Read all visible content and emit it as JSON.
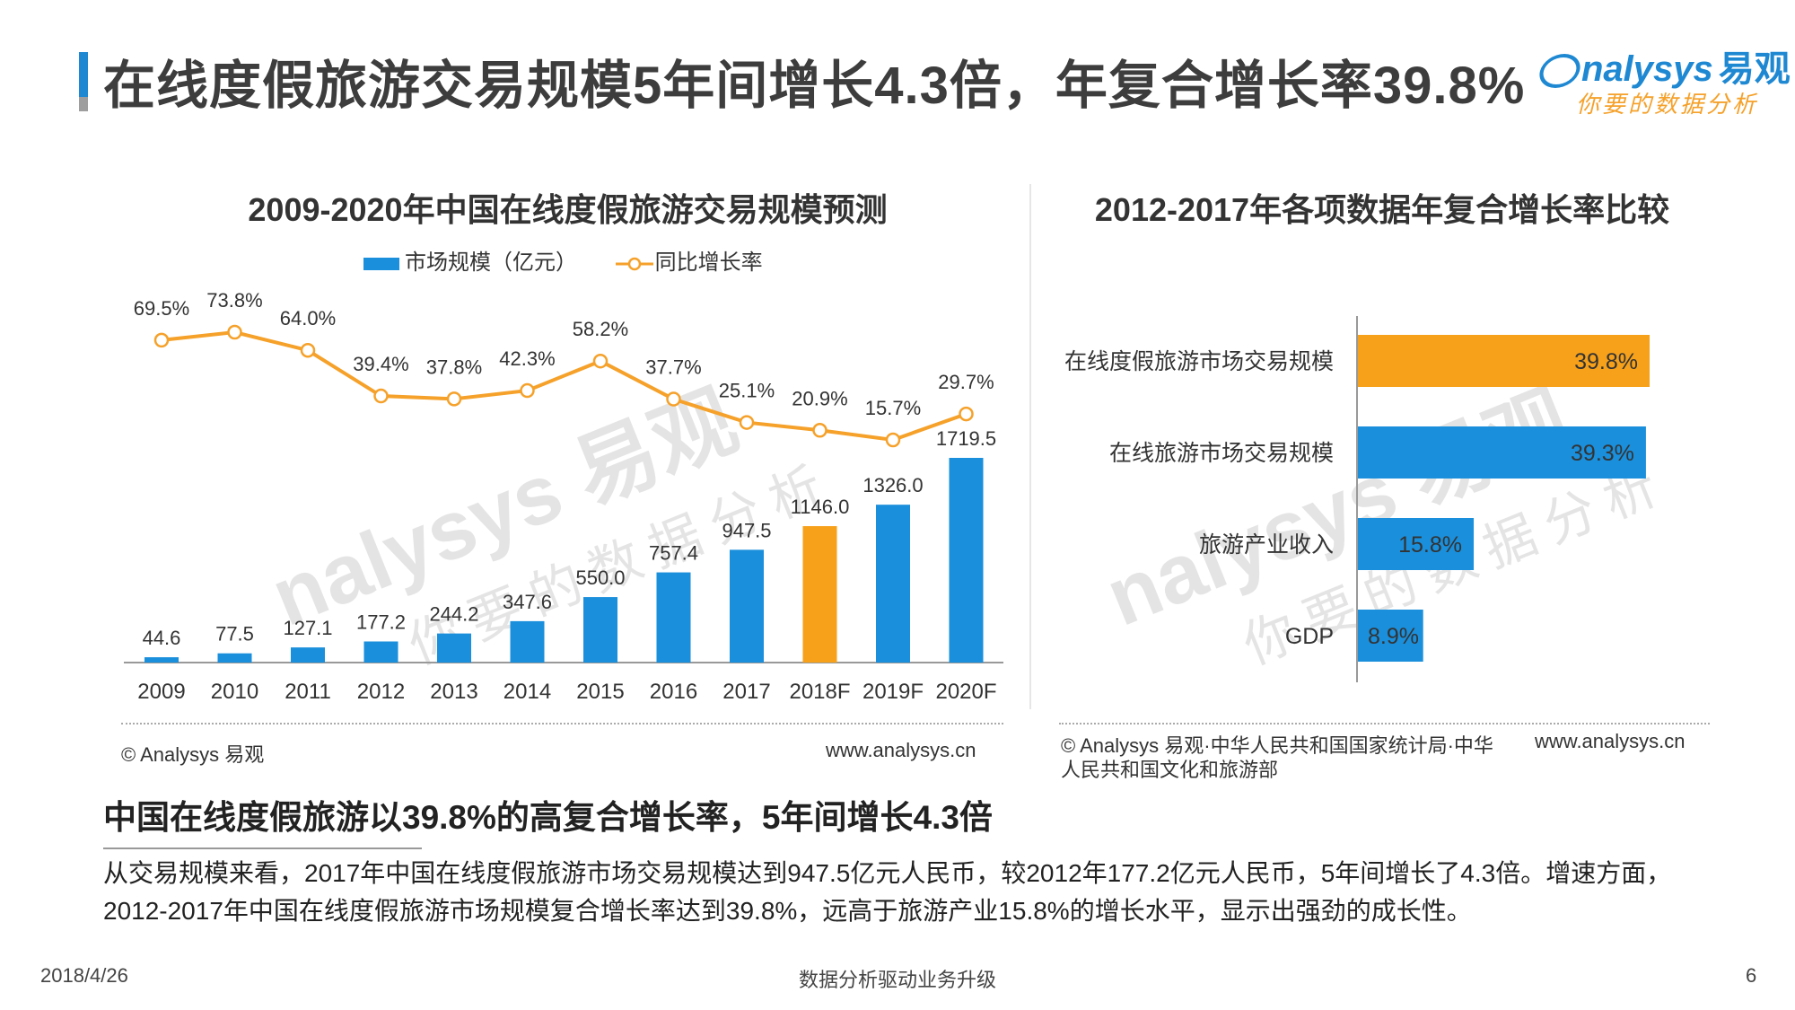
{
  "header": {
    "title": "在线度假旅游交易规模5年间增长4.3倍，年复合增长率39.8%",
    "logo_text": "nalysys",
    "logo_cn": "易观",
    "logo_sub": "你要的数据分析"
  },
  "watermark": {
    "brand": "nalysys 易观",
    "sub": "你要的数据分析"
  },
  "left_chart": {
    "source_left": "© Analysys 易观",
    "source_right": "www.analysys.cn"
  },
  "right_chart": {
    "source_text": "© Analysys 易观·中华人民共和国国家统计局·中华人民共和国文化和旅游部",
    "source_right": "www.analysys.cn",
    "source_line1": "© Analysys 易观·中华人民共和国国家统计局·中华",
    "source_line2": "人民共和国文化和旅游部"
  },
  "chart_data": [
    {
      "type": "bar",
      "title": "2009-2020年中国在线度假旅游交易规模预测",
      "categories": [
        "2009",
        "2010",
        "2011",
        "2012",
        "2013",
        "2014",
        "2015",
        "2016",
        "2017",
        "2018F",
        "2019F",
        "2020F"
      ],
      "series": [
        {
          "name": "市场规模（亿元）",
          "type": "bar",
          "values": [
            44.6,
            77.5,
            127.1,
            177.2,
            244.2,
            347.6,
            550.0,
            757.4,
            947.5,
            1146.0,
            1326.0,
            1719.5
          ],
          "value_labels": [
            "44.6",
            "77.5",
            "127.1",
            "177.2",
            "244.2",
            "347.6",
            "550.0",
            "757.4",
            "947.5",
            "1146.0",
            "1326.0",
            "1719.5"
          ],
          "highlight_index": 9
        },
        {
          "name": "同比增长率",
          "type": "line",
          "values": [
            69.5,
            73.8,
            64.0,
            39.4,
            37.8,
            42.3,
            58.2,
            37.7,
            25.1,
            20.9,
            15.7,
            29.7
          ],
          "value_labels": [
            "69.5%",
            "73.8%",
            "64.0%",
            "39.4%",
            "37.8%",
            "42.3%",
            "58.2%",
            "37.7%",
            "25.1%",
            "20.9%",
            "15.7%",
            "29.7%"
          ]
        }
      ],
      "legend_position": "top-center",
      "colors": {
        "bar": "#1a8fdc",
        "bar_highlight": "#f7a11a",
        "line": "#f5a12a"
      },
      "grid": false
    },
    {
      "type": "bar",
      "orientation": "horizontal",
      "title": "2012-2017年各项数据年复合增长率比较",
      "categories": [
        "在线度假旅游市场交易规模",
        "在线旅游市场交易规模",
        "旅游产业收入",
        "GDP"
      ],
      "values": [
        39.8,
        39.3,
        15.8,
        8.9
      ],
      "value_labels": [
        "39.8%",
        "39.3%",
        "15.8%",
        "8.9%"
      ],
      "colors": [
        "#f7a11a",
        "#1a8fdc",
        "#1a8fdc",
        "#1a8fdc"
      ],
      "xlim": [
        0,
        45
      ],
      "grid": false
    }
  ],
  "summary": {
    "heading": "中国在线度假旅游以39.8%的高复合增长率，5年间增长4.3倍",
    "body": "从交易规模来看，2017年中国在线度假旅游市场交易规模达到947.5亿元人民币，较2012年177.2亿元人民币，5年间增长了4.3倍。增速方面，2012-2017年中国在线度假旅游市场规模复合增长率达到39.8%，远高于旅游产业15.8%的增长水平，显示出强劲的成长性。"
  },
  "footer": {
    "date": "2018/4/26",
    "center": "数据分析驱动业务升级",
    "page": "6"
  }
}
